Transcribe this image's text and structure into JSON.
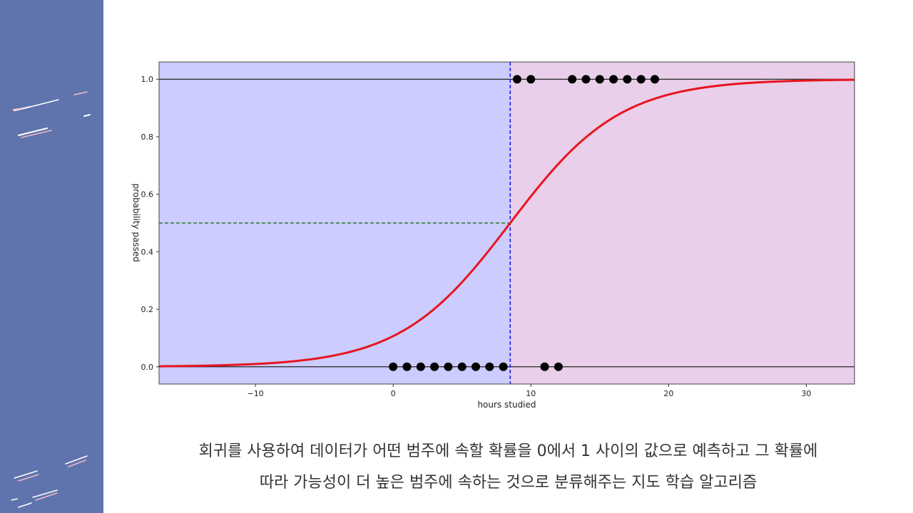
{
  "slide": {
    "sidebar_color": "#5f74ad",
    "caption_lines": [
      "회귀를 사용하여 데이터가 어떤 범주에 속할 확률을 0에서 1 사이의 값으로 예측하고 그 확률에",
      "따라 가능성이 더 높은 범주에 속하는 것으로 분류해주는 지도 학습 알고리즘"
    ]
  },
  "chart_data": {
    "type": "scatter",
    "title": "",
    "xlabel": "hours studied",
    "ylabel": "probability passed",
    "xlim": [
      -17,
      33.5
    ],
    "ylim": [
      -0.06,
      1.06
    ],
    "x_ticks": [
      -10,
      0,
      10,
      20,
      30
    ],
    "x_tick_labels": [
      "−10",
      "0",
      "10",
      "20",
      "30"
    ],
    "y_ticks": [
      0.0,
      0.2,
      0.4,
      0.6,
      0.8,
      1.0
    ],
    "y_tick_labels": [
      "0.0",
      "0.2",
      "0.4",
      "0.6",
      "0.8",
      "1.0"
    ],
    "grid": false,
    "decision_boundary_x": 8.5,
    "threshold_y": 0.5,
    "logistic_curve": {
      "midpoint": 8.5,
      "slope": 0.25,
      "color": "#e8141e"
    },
    "region_colors": {
      "below": "#ccccff",
      "above": "#e9cfe9"
    },
    "points_class_0": [
      0,
      1,
      2,
      3,
      4,
      5,
      6,
      7,
      8,
      11,
      12
    ],
    "points_class_1": [
      9,
      10,
      13,
      14,
      15,
      16,
      17,
      18,
      19
    ],
    "colors": {
      "boundary": "#1f1fe0",
      "threshold": "#2a7a2a",
      "points": "#000000",
      "baseline": "#222222"
    }
  }
}
